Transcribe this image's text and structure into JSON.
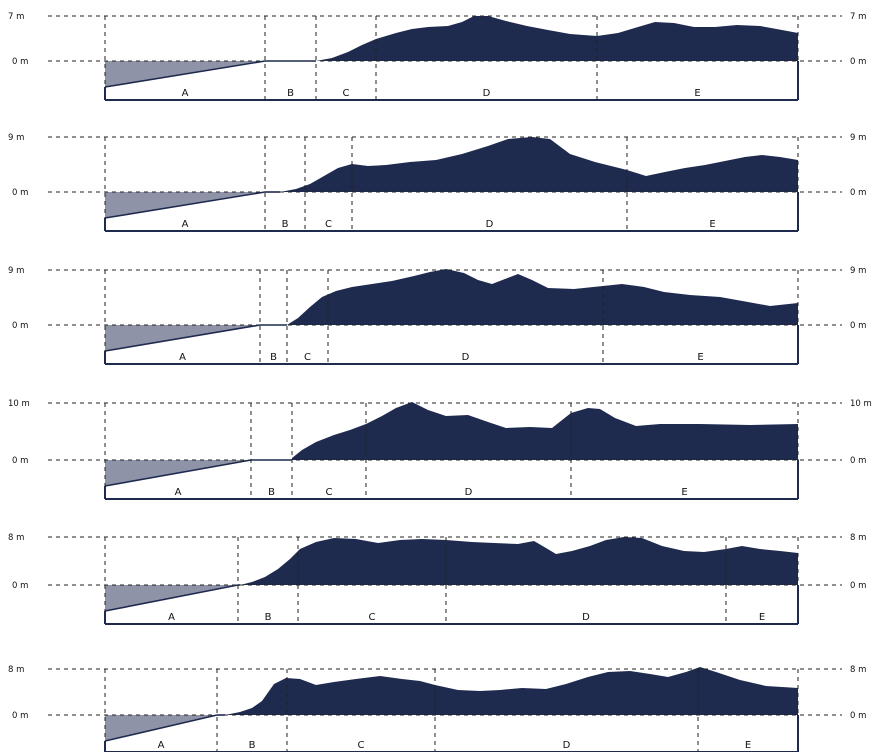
{
  "colors": {
    "terrain": "#1f2a4f",
    "wedge": "#8f93a8",
    "line": "#1f2a4f",
    "guide": "#222222"
  },
  "profiles": [
    {
      "top_label_left": "7 m",
      "top_label_right": "7 m",
      "zero_label_left": "0 m",
      "zero_label_right": "0 m",
      "zone_labels": [
        "A",
        "B",
        "C",
        "D",
        "E"
      ]
    },
    {
      "top_label_left": "9 m",
      "top_label_right": "9 m",
      "zero_label_left": "0 m",
      "zero_label_right": "0 m",
      "zone_labels": [
        "A",
        "B",
        "C",
        "D",
        "E"
      ]
    },
    {
      "top_label_left": "9 m",
      "top_label_right": "9 m",
      "zero_label_left": "0 m",
      "zero_label_right": "0 m",
      "zone_labels": [
        "A",
        "B",
        "C",
        "D",
        "E"
      ]
    },
    {
      "top_label_left": "10 m",
      "top_label_right": "10 m",
      "zero_label_left": "0 m",
      "zero_label_right": "0 m",
      "zone_labels": [
        "A",
        "B",
        "C",
        "D",
        "E"
      ]
    },
    {
      "top_label_left": "8 m",
      "top_label_right": "8 m",
      "zero_label_left": "0 m",
      "zero_label_right": "0 m",
      "zone_labels": [
        "A",
        "B",
        "C",
        "D",
        "E"
      ]
    },
    {
      "top_label_left": "8 m",
      "top_label_right": "8 m",
      "zero_label_left": "0 m",
      "zero_label_right": "0 m",
      "zone_labels": [
        "A",
        "B",
        "C",
        "D",
        "E"
      ]
    }
  ]
}
